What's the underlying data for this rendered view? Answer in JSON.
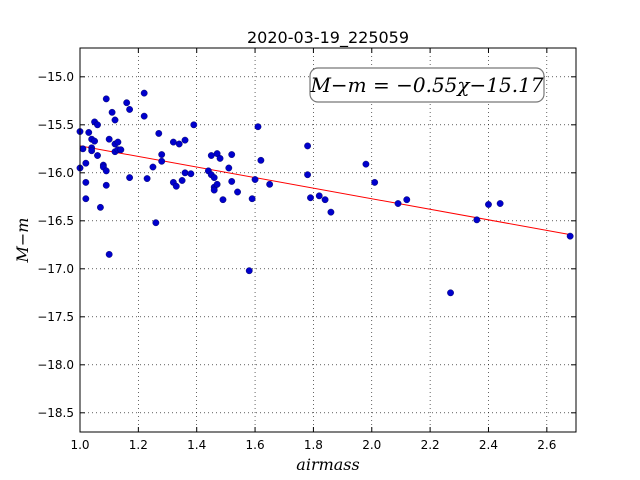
{
  "chart_data": {
    "type": "scatter",
    "title": "2020-03-19_225059",
    "xlabel": "airmass",
    "ylabel": "M−m",
    "xlim": [
      1.0,
      2.7
    ],
    "ylim": [
      -18.7,
      -14.7
    ],
    "y_inverted": true,
    "x_ticks": [
      1.0,
      1.2,
      1.4,
      1.6,
      1.8,
      2.0,
      2.2,
      2.4,
      2.6
    ],
    "x_tick_labels": [
      "1.0",
      "1.2",
      "1.4",
      "1.6",
      "1.8",
      "2.0",
      "2.2",
      "2.4",
      "2.6"
    ],
    "y_ticks": [
      -15.0,
      -15.5,
      -16.0,
      -16.5,
      -17.0,
      -17.5,
      -18.0,
      -18.5
    ],
    "y_tick_labels": [
      "−15.0",
      "−15.5",
      "−16.0",
      "−16.5",
      "−17.0",
      "−17.5",
      "−18.0",
      "−18.5"
    ],
    "grid": true,
    "annotation": "M−m = −0.55χ−15.17",
    "annotation_position": "top-right",
    "fit": {
      "slope": -0.55,
      "intercept": -15.17,
      "color": "#ff0000"
    },
    "series": [
      {
        "marker_color": "#0000cc",
        "x": [
          1.0,
          1.0,
          1.01,
          1.02,
          1.02,
          1.02,
          1.03,
          1.04,
          1.04,
          1.04,
          1.05,
          1.05,
          1.06,
          1.06,
          1.07,
          1.08,
          1.08,
          1.09,
          1.09,
          1.09,
          1.1,
          1.1,
          1.11,
          1.12,
          1.12,
          1.12,
          1.13,
          1.13,
          1.14,
          1.16,
          1.17,
          1.17,
          1.22,
          1.22,
          1.23,
          1.25,
          1.26,
          1.27,
          1.28,
          1.28,
          1.32,
          1.32,
          1.33,
          1.34,
          1.35,
          1.36,
          1.36,
          1.38,
          1.39,
          1.44,
          1.45,
          1.45,
          1.46,
          1.46,
          1.46,
          1.47,
          1.47,
          1.48,
          1.49,
          1.51,
          1.52,
          1.52,
          1.54,
          1.58,
          1.59,
          1.6,
          1.61,
          1.62,
          1.65,
          1.78,
          1.78,
          1.79,
          1.82,
          1.84,
          1.86,
          1.98,
          2.01,
          2.09,
          2.12,
          2.27,
          2.36,
          2.4,
          2.44,
          2.68
        ],
        "y": [
          -15.57,
          -15.95,
          -15.75,
          -16.1,
          -16.27,
          -15.9,
          -15.58,
          -15.65,
          -15.74,
          -15.77,
          -15.47,
          -15.67,
          -15.5,
          -15.82,
          -16.36,
          -15.92,
          -15.94,
          -15.23,
          -15.98,
          -16.13,
          -16.85,
          -15.65,
          -15.37,
          -15.45,
          -15.7,
          -15.78,
          -15.68,
          -15.76,
          -15.76,
          -15.27,
          -15.34,
          -16.05,
          -15.17,
          -15.41,
          -16.06,
          -15.94,
          -16.52,
          -15.59,
          -15.81,
          -15.88,
          -15.68,
          -16.1,
          -16.14,
          -15.7,
          -16.08,
          -16.0,
          -15.66,
          -16.01,
          -15.5,
          -15.98,
          -15.82,
          -16.02,
          -16.05,
          -16.15,
          -16.18,
          -15.8,
          -16.12,
          -15.85,
          -16.28,
          -15.95,
          -15.81,
          -16.09,
          -16.2,
          -17.02,
          -16.27,
          -16.07,
          -15.52,
          -15.87,
          -16.12,
          -15.72,
          -16.02,
          -16.26,
          -16.24,
          -16.28,
          -16.41,
          -15.91,
          -16.1,
          -16.32,
          -16.28,
          -17.25,
          -16.49,
          -16.33,
          -16.32,
          -16.66
        ]
      }
    ]
  }
}
